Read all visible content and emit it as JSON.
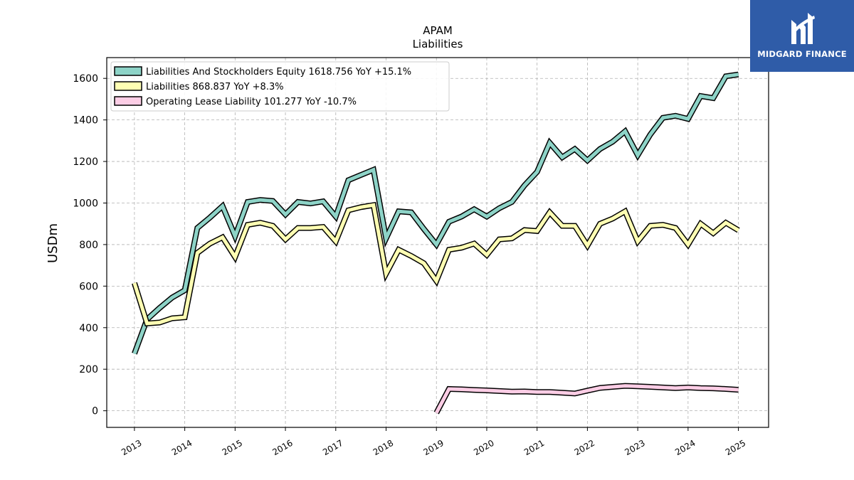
{
  "chart_data": {
    "type": "line",
    "title": "APAM",
    "subtitle": "Liabilities",
    "xlabel": "",
    "ylabel": "USDm",
    "xlim": [
      2012.45,
      2025.6
    ],
    "ylim": [
      -80,
      1700
    ],
    "x_ticks": [
      "2013",
      "2014",
      "2015",
      "2016",
      "2017",
      "2018",
      "2019",
      "2020",
      "2021",
      "2022",
      "2023",
      "2024",
      "2025"
    ],
    "y_ticks": [
      0,
      200,
      400,
      600,
      800,
      1000,
      1200,
      1400,
      1600
    ],
    "grid": true,
    "legend_position": "top-left",
    "series": [
      {
        "name": "Liabilities And Stockholders Equity",
        "legend_label": "Liabilities And Stockholders Equity  1618.756 YoY +15.1%",
        "color": "#8dd3c7",
        "points": [
          [
            2013.0,
            275
          ],
          [
            2013.25,
            440
          ],
          [
            2013.5,
            495
          ],
          [
            2013.75,
            545
          ],
          [
            2014.0,
            580
          ],
          [
            2014.25,
            880
          ],
          [
            2014.5,
            930
          ],
          [
            2014.75,
            985
          ],
          [
            2015.0,
            840
          ],
          [
            2015.25,
            1005
          ],
          [
            2015.5,
            1015
          ],
          [
            2015.75,
            1010
          ],
          [
            2016.0,
            945
          ],
          [
            2016.25,
            1005
          ],
          [
            2016.5,
            998
          ],
          [
            2016.75,
            1008
          ],
          [
            2017.0,
            935
          ],
          [
            2017.25,
            1110
          ],
          [
            2017.5,
            1135
          ],
          [
            2017.75,
            1160
          ],
          [
            2018.0,
            830
          ],
          [
            2018.25,
            960
          ],
          [
            2018.5,
            955
          ],
          [
            2018.75,
            875
          ],
          [
            2019.0,
            800
          ],
          [
            2019.25,
            910
          ],
          [
            2019.5,
            935
          ],
          [
            2019.75,
            970
          ],
          [
            2020.0,
            935
          ],
          [
            2020.25,
            975
          ],
          [
            2020.5,
            1005
          ],
          [
            2020.75,
            1085
          ],
          [
            2021.0,
            1150
          ],
          [
            2021.25,
            1290
          ],
          [
            2021.5,
            1220
          ],
          [
            2021.75,
            1260
          ],
          [
            2022.0,
            1205
          ],
          [
            2022.25,
            1260
          ],
          [
            2022.5,
            1295
          ],
          [
            2022.75,
            1345
          ],
          [
            2023.0,
            1230
          ],
          [
            2023.25,
            1330
          ],
          [
            2023.5,
            1410
          ],
          [
            2023.75,
            1420
          ],
          [
            2024.0,
            1405
          ],
          [
            2024.25,
            1515
          ],
          [
            2024.5,
            1505
          ],
          [
            2024.75,
            1610
          ],
          [
            2025.0,
            1619
          ]
        ]
      },
      {
        "name": "Liabilities",
        "legend_label": "Liabilities  868.837 YoY +8.3%",
        "color": "#ffffb3",
        "points": [
          [
            2013.0,
            615
          ],
          [
            2013.25,
            420
          ],
          [
            2013.5,
            425
          ],
          [
            2013.75,
            445
          ],
          [
            2014.0,
            450
          ],
          [
            2014.25,
            760
          ],
          [
            2014.5,
            805
          ],
          [
            2014.75,
            835
          ],
          [
            2015.0,
            740
          ],
          [
            2015.25,
            895
          ],
          [
            2015.5,
            905
          ],
          [
            2015.75,
            890
          ],
          [
            2016.0,
            825
          ],
          [
            2016.25,
            880
          ],
          [
            2016.5,
            880
          ],
          [
            2016.75,
            885
          ],
          [
            2017.0,
            815
          ],
          [
            2017.25,
            965
          ],
          [
            2017.5,
            980
          ],
          [
            2017.75,
            990
          ],
          [
            2018.0,
            660
          ],
          [
            2018.25,
            775
          ],
          [
            2018.5,
            745
          ],
          [
            2018.75,
            710
          ],
          [
            2019.0,
            625
          ],
          [
            2019.25,
            775
          ],
          [
            2019.5,
            785
          ],
          [
            2019.75,
            805
          ],
          [
            2020.0,
            750
          ],
          [
            2020.25,
            825
          ],
          [
            2020.5,
            830
          ],
          [
            2020.75,
            870
          ],
          [
            2021.0,
            865
          ],
          [
            2021.25,
            955
          ],
          [
            2021.5,
            890
          ],
          [
            2021.75,
            890
          ],
          [
            2022.0,
            795
          ],
          [
            2022.25,
            900
          ],
          [
            2022.5,
            925
          ],
          [
            2022.75,
            960
          ],
          [
            2023.0,
            815
          ],
          [
            2023.25,
            890
          ],
          [
            2023.5,
            895
          ],
          [
            2023.75,
            880
          ],
          [
            2024.0,
            800
          ],
          [
            2024.25,
            900
          ],
          [
            2024.5,
            855
          ],
          [
            2024.75,
            905
          ],
          [
            2025.0,
            869
          ]
        ]
      },
      {
        "name": "Operating Lease Liability",
        "legend_label": "Operating Lease Liability  101.277 YoY -10.7%",
        "color": "#fccde5",
        "points": [
          [
            2019.0,
            -10
          ],
          [
            2019.25,
            105
          ],
          [
            2019.5,
            103
          ],
          [
            2019.75,
            100
          ],
          [
            2020.0,
            98
          ],
          [
            2020.25,
            95
          ],
          [
            2020.5,
            92
          ],
          [
            2020.75,
            93
          ],
          [
            2021.0,
            90
          ],
          [
            2021.25,
            90
          ],
          [
            2021.5,
            87
          ],
          [
            2021.75,
            83
          ],
          [
            2022.0,
            97
          ],
          [
            2022.25,
            110
          ],
          [
            2022.5,
            115
          ],
          [
            2022.75,
            120
          ],
          [
            2023.0,
            118
          ],
          [
            2023.25,
            115
          ],
          [
            2023.5,
            112
          ],
          [
            2023.75,
            109
          ],
          [
            2024.0,
            112
          ],
          [
            2024.25,
            109
          ],
          [
            2024.5,
            108
          ],
          [
            2024.75,
            105
          ],
          [
            2025.0,
            101
          ]
        ]
      }
    ]
  },
  "brand": {
    "name": "MIDGARD FINANCE",
    "background": "#2f5ca8"
  }
}
